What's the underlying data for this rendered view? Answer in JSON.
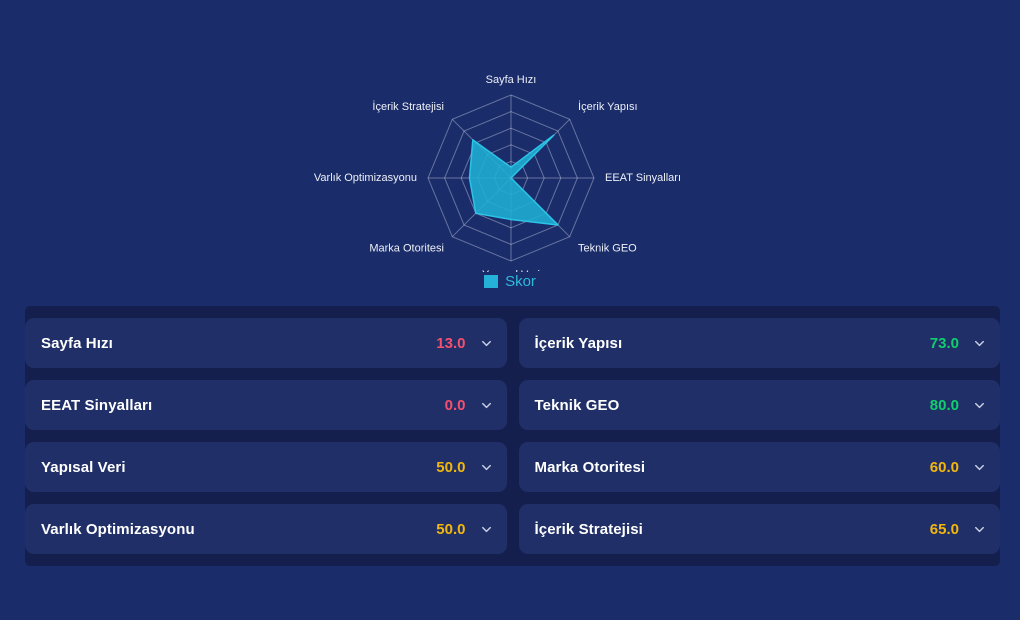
{
  "theme": {
    "page_bg": "#1a2c69",
    "section_bg": "#141f4d",
    "card_bg": "#202f68",
    "chevron_color": "#c7cfe2"
  },
  "chart_data": {
    "type": "radar",
    "title": "",
    "categories": [
      "Sayfa Hızı",
      "İçerik Yapısı",
      "EEAT Sinyalları",
      "Teknik GEO",
      "Yapısal Veri",
      "Marka Otoritesi",
      "Varlık Optimizasyonu",
      "İçerik Stratejisi"
    ],
    "series": [
      {
        "name": "Skor",
        "values": [
          13,
          73,
          0,
          80,
          50,
          60,
          50,
          65
        ]
      }
    ],
    "max": 100,
    "levels": 5,
    "grid": true,
    "legend_position": "bottom",
    "fill_color": "#1fafd4",
    "fill_opacity": 0.88,
    "stroke_color": "#2bc4e6",
    "grid_color": "rgba(225,232,250,0.38)",
    "label_color": "#edf0f8"
  },
  "legend": {
    "label": "Skor",
    "swatch_color": "#25b2d8",
    "text_color": "#2fb9dc"
  },
  "metrics": [
    {
      "label": "Sayfa Hızı",
      "value": "13.0",
      "color": "#f4506e"
    },
    {
      "label": "İçerik Yapısı",
      "value": "73.0",
      "color": "#10ce6d"
    },
    {
      "label": "EEAT Sinyalları",
      "value": "0.0",
      "color": "#f4506e"
    },
    {
      "label": "Teknik GEO",
      "value": "80.0",
      "color": "#10ce6d"
    },
    {
      "label": "Yapısal Veri",
      "value": "50.0",
      "color": "#f2b70e"
    },
    {
      "label": "Marka Otoritesi",
      "value": "60.0",
      "color": "#f2b70e"
    },
    {
      "label": "Varlık Optimizasyonu",
      "value": "50.0",
      "color": "#f2b70e"
    },
    {
      "label": "İçerik Stratejisi",
      "value": "65.0",
      "color": "#f2b70e"
    }
  ]
}
